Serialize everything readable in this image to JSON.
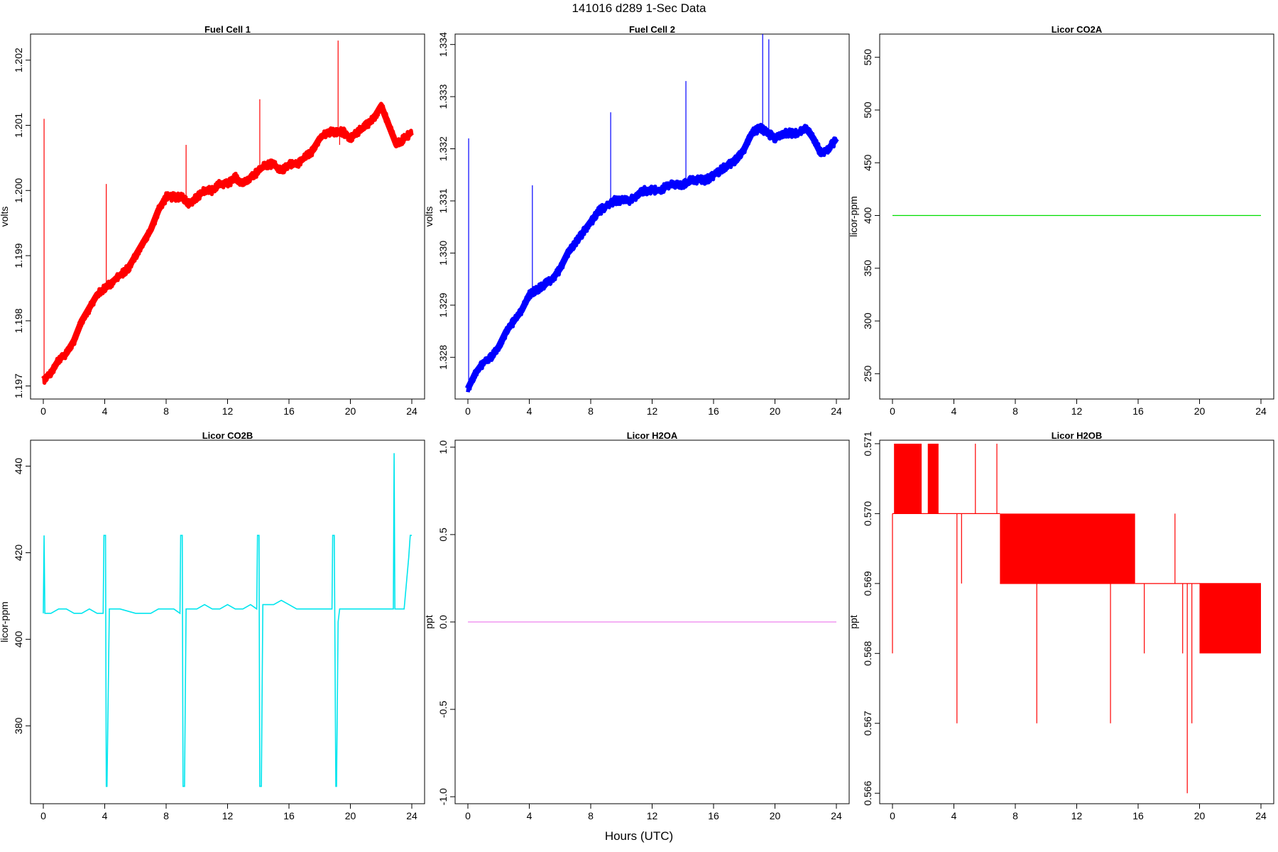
{
  "figure": {
    "title": "141016   d289   1-Sec Data",
    "xlabel": "Hours (UTC)"
  },
  "chart_data": [
    {
      "type": "line",
      "title": "Fuel Cell 1",
      "ylabel": "volts",
      "color": "#ff0000",
      "xlim": [
        0,
        24
      ],
      "ylim": [
        1.1968,
        1.2024
      ],
      "xticks": [
        0,
        4,
        8,
        12,
        16,
        20,
        24
      ],
      "yticks": [
        1.197,
        1.198,
        1.199,
        1.2,
        1.201,
        1.202
      ],
      "ytick_labels": [
        "1.197",
        "1.198",
        "1.199",
        "1.200",
        "1.201",
        "1.202"
      ],
      "series": [
        {
          "x": [
            0,
            0.5,
            1,
            1.5,
            2,
            2.5,
            3,
            3.5,
            4,
            4.5,
            5,
            5.5,
            6,
            6.5,
            7,
            7.5,
            8,
            8.5,
            9,
            9.5,
            10,
            10.5,
            11,
            11.5,
            12,
            12.5,
            13,
            13.5,
            14,
            14.5,
            15,
            15.5,
            16,
            16.5,
            17,
            17.5,
            18,
            18.5,
            19,
            19.5,
            20,
            20.5,
            21,
            21.5,
            22,
            22.5,
            23,
            23.5,
            24
          ],
          "y": [
            1.1971,
            1.1972,
            1.1974,
            1.1975,
            1.1977,
            1.198,
            1.1982,
            1.1984,
            1.1985,
            1.1986,
            1.1987,
            1.1988,
            1.199,
            1.1992,
            1.1994,
            1.1997,
            1.1999,
            1.1999,
            1.1999,
            1.1998,
            1.1999,
            1.2,
            1.2,
            1.2001,
            1.2001,
            1.2002,
            1.2001,
            1.2002,
            1.2003,
            1.2004,
            1.2004,
            1.2003,
            1.2004,
            1.2004,
            1.2005,
            1.2006,
            1.2008,
            1.2009,
            1.2009,
            1.2009,
            1.2008,
            1.2009,
            1.201,
            1.2011,
            1.2013,
            1.201,
            1.2007,
            1.2008,
            1.2009
          ]
        }
      ],
      "spikes": [
        {
          "x": 0.05,
          "y": 1.2011
        },
        {
          "x": 4.1,
          "y": 1.2001
        },
        {
          "x": 9.3,
          "y": 1.2007
        },
        {
          "x": 14.1,
          "y": 1.2014
        },
        {
          "x": 19.2,
          "y": 1.2023
        },
        {
          "x": 19.3,
          "y": 1.2007
        }
      ]
    },
    {
      "type": "line",
      "title": "Fuel Cell 2",
      "ylabel": "volts",
      "color": "#0000ff",
      "xlim": [
        0,
        24
      ],
      "ylim": [
        1.3272,
        1.3342
      ],
      "xticks": [
        0,
        4,
        8,
        12,
        16,
        20,
        24
      ],
      "yticks": [
        1.328,
        1.329,
        1.33,
        1.331,
        1.332,
        1.333,
        1.334
      ],
      "ytick_labels": [
        "1.328",
        "1.329",
        "1.330",
        "1.331",
        "1.332",
        "1.333",
        "1.334"
      ],
      "series": [
        {
          "x": [
            0,
            0.5,
            1,
            1.5,
            2,
            2.5,
            3,
            3.5,
            4,
            4.5,
            5,
            5.5,
            6,
            6.5,
            7,
            7.5,
            8,
            8.5,
            9,
            9.5,
            10,
            10.5,
            11,
            11.5,
            12,
            12.5,
            13,
            13.5,
            14,
            14.5,
            15,
            15.5,
            16,
            16.5,
            17,
            17.5,
            18,
            18.5,
            19,
            19.5,
            20,
            20.5,
            21,
            21.5,
            22,
            22.5,
            23,
            23.5,
            24
          ],
          "y": [
            1.3274,
            1.3277,
            1.3279,
            1.328,
            1.3282,
            1.3285,
            1.3287,
            1.3289,
            1.3292,
            1.3293,
            1.3294,
            1.3295,
            1.3297,
            1.33,
            1.3302,
            1.3304,
            1.3306,
            1.3308,
            1.3309,
            1.331,
            1.331,
            1.331,
            1.3311,
            1.3312,
            1.3312,
            1.3312,
            1.3313,
            1.3313,
            1.3313,
            1.3314,
            1.3314,
            1.3314,
            1.3315,
            1.3316,
            1.3317,
            1.3318,
            1.332,
            1.3323,
            1.3324,
            1.3323,
            1.3322,
            1.3323,
            1.3323,
            1.3323,
            1.3324,
            1.3322,
            1.3319,
            1.332,
            1.3322
          ]
        }
      ],
      "spikes": [
        {
          "x": 0.05,
          "y": 1.3322
        },
        {
          "x": 4.2,
          "y": 1.3313
        },
        {
          "x": 9.3,
          "y": 1.3327
        },
        {
          "x": 14.2,
          "y": 1.3333
        },
        {
          "x": 19.2,
          "y": 1.3342
        },
        {
          "x": 19.6,
          "y": 1.3341
        }
      ]
    },
    {
      "type": "line",
      "title": "Licor CO2A",
      "ylabel": "licor-ppm",
      "color": "#00dd00",
      "xlim": [
        0,
        24
      ],
      "ylim": [
        226,
        572
      ],
      "xticks": [
        0,
        4,
        8,
        12,
        16,
        20,
        24
      ],
      "yticks": [
        250,
        300,
        350,
        400,
        450,
        500,
        550
      ],
      "ytick_labels": [
        "250",
        "300",
        "350",
        "400",
        "450",
        "500",
        "550"
      ],
      "series": [
        {
          "x": [
            0,
            24
          ],
          "y": [
            400,
            400
          ]
        }
      ]
    },
    {
      "type": "line",
      "title": "Licor CO2B",
      "ylabel": "licor-ppm",
      "color": "#00e5ee",
      "xlim": [
        0,
        24
      ],
      "ylim": [
        362,
        446
      ],
      "xticks": [
        0,
        4,
        8,
        12,
        16,
        20,
        24
      ],
      "yticks": [
        380,
        400,
        420,
        440
      ],
      "ytick_labels": [
        "380",
        "400",
        "420",
        "440"
      ],
      "series": [
        {
          "x": [
            0,
            0.05,
            0.1,
            0.5,
            1,
            1.5,
            2,
            2.5,
            3,
            3.5,
            3.9,
            3.95,
            4.05,
            4.1,
            4.15,
            4.3,
            5,
            6,
            7,
            7.5,
            8,
            8.5,
            8.9,
            8.95,
            9.05,
            9.1,
            9.2,
            9.3,
            10,
            10.5,
            11,
            11.5,
            12,
            12.5,
            13,
            13.5,
            13.9,
            13.95,
            14.05,
            14.1,
            14.2,
            14.3,
            15,
            15.5,
            16,
            16.5,
            17,
            17.5,
            18,
            18.8,
            18.85,
            18.95,
            19.05,
            19.1,
            19.2,
            19.3,
            20,
            21,
            22,
            22.5,
            22.8,
            22.85,
            22.9,
            23,
            23.5,
            23.8,
            23.9,
            24
          ],
          "y": [
            406,
            424,
            406,
            406,
            407,
            407,
            406,
            406,
            407,
            406,
            406,
            424,
            424,
            366,
            366,
            407,
            407,
            406,
            406,
            407,
            407,
            407,
            406,
            424,
            424,
            366,
            366,
            407,
            407,
            408,
            407,
            407,
            408,
            407,
            407,
            408,
            407,
            424,
            424,
            366,
            366,
            408,
            408,
            409,
            408,
            407,
            407,
            407,
            407,
            407,
            424,
            424,
            366,
            366,
            404,
            407,
            407,
            407,
            407,
            407,
            407,
            443,
            407,
            407,
            407,
            419,
            424,
            424
          ]
        }
      ]
    },
    {
      "type": "line",
      "title": "Licor H2OA",
      "ylabel": "ppt",
      "color": "#ee82ee",
      "xlim": [
        0,
        24
      ],
      "ylim": [
        -1.04,
        1.04
      ],
      "xticks": [
        0,
        4,
        8,
        12,
        16,
        20,
        24
      ],
      "yticks": [
        -1.0,
        -0.5,
        0.0,
        0.5,
        1.0
      ],
      "ytick_labels": [
        "-1.0",
        "-0.5",
        "0.0",
        "0.5",
        "1.0"
      ],
      "series": [
        {
          "x": [
            0,
            24
          ],
          "y": [
            0,
            0
          ]
        }
      ]
    },
    {
      "type": "line",
      "title": "Licor H2OB",
      "ylabel": "ppt",
      "color": "#ff0000",
      "xlim": [
        0,
        24
      ],
      "ylim": [
        0.56585,
        0.57105
      ],
      "xticks": [
        0,
        4,
        8,
        12,
        16,
        20,
        24
      ],
      "yticks": [
        0.566,
        0.567,
        0.568,
        0.569,
        0.57,
        0.571
      ],
      "ytick_labels": [
        "0.566",
        "0.567",
        "0.568",
        "0.569",
        "0.570",
        "0.571"
      ],
      "levels": [
        {
          "x0": 0,
          "x1": 7,
          "y": 0.57
        },
        {
          "x0": 7,
          "x1": 15.8,
          "y": 0.569
        },
        {
          "x0": 15.8,
          "x1": 24,
          "y": 0.569
        }
      ],
      "bands": [
        {
          "x0": 0.1,
          "x1": 1.9,
          "y0": 0.57,
          "y1": 0.571
        },
        {
          "x0": 2.3,
          "x1": 3.0,
          "y0": 0.57,
          "y1": 0.571
        },
        {
          "x0": 7.0,
          "x1": 15.8,
          "y0": 0.569,
          "y1": 0.57
        },
        {
          "x0": 20.0,
          "x1": 24.0,
          "y0": 0.568,
          "y1": 0.569
        }
      ],
      "spikes": [
        {
          "x": 0.0,
          "y": 0.568
        },
        {
          "x": 4.2,
          "y": 0.567
        },
        {
          "x": 4.5,
          "y": 0.569
        },
        {
          "x": 5.4,
          "y": 0.571
        },
        {
          "x": 6.8,
          "y": 0.571
        },
        {
          "x": 9.4,
          "y": 0.567
        },
        {
          "x": 14.2,
          "y": 0.567
        },
        {
          "x": 16.4,
          "y": 0.568
        },
        {
          "x": 18.4,
          "y": 0.57
        },
        {
          "x": 18.9,
          "y": 0.568
        },
        {
          "x": 19.2,
          "y": 0.566
        },
        {
          "x": 19.5,
          "y": 0.567
        }
      ]
    }
  ]
}
